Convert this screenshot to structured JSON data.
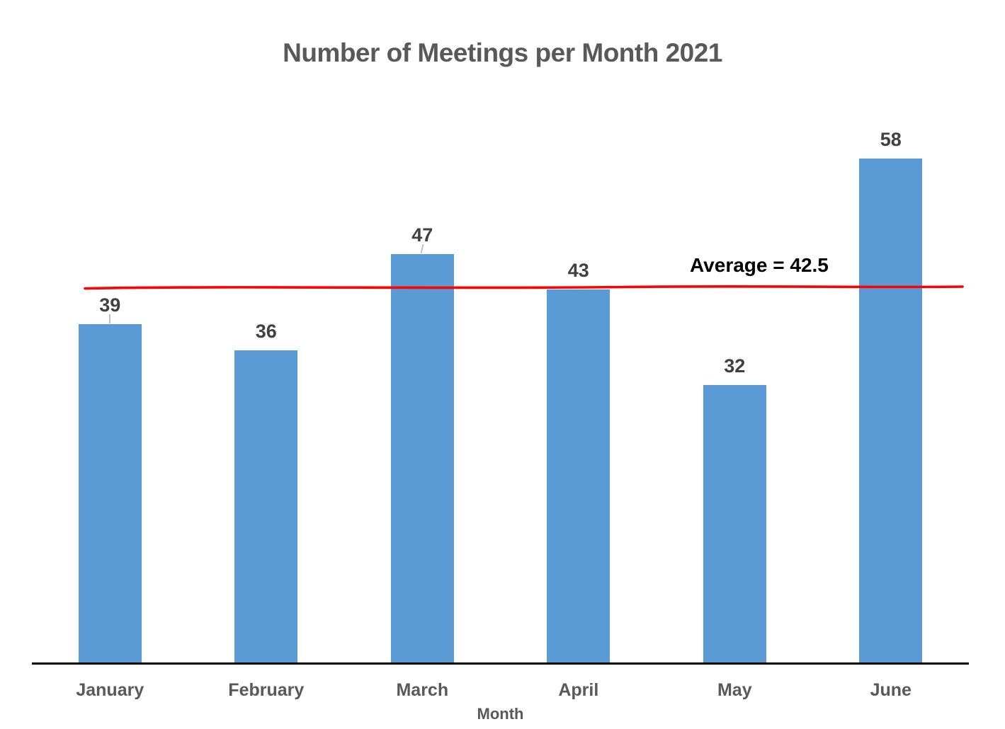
{
  "chart_data": {
    "type": "bar",
    "title": "Number of Meetings per Month 2021",
    "categories": [
      "January",
      "February",
      "March",
      "April",
      "May",
      "June"
    ],
    "values": [
      39,
      36,
      47,
      43,
      32,
      58
    ],
    "xlabel": "Month",
    "ylabel": "",
    "average": 42.5,
    "average_label": "Average = 42.5",
    "ylim": [
      0,
      64
    ],
    "grid": false,
    "legend": false,
    "data_labels_shown": true,
    "label_leader_lines": [
      "January",
      "March"
    ],
    "colors": {
      "bar": "#5B9BD5",
      "average_line": "#FE0101",
      "title": "#595959",
      "data_label": "#404040",
      "category_label": "#595959",
      "average_label": "#000000",
      "axis_line": "#000000",
      "leader_line": "#BFBFBF"
    }
  }
}
